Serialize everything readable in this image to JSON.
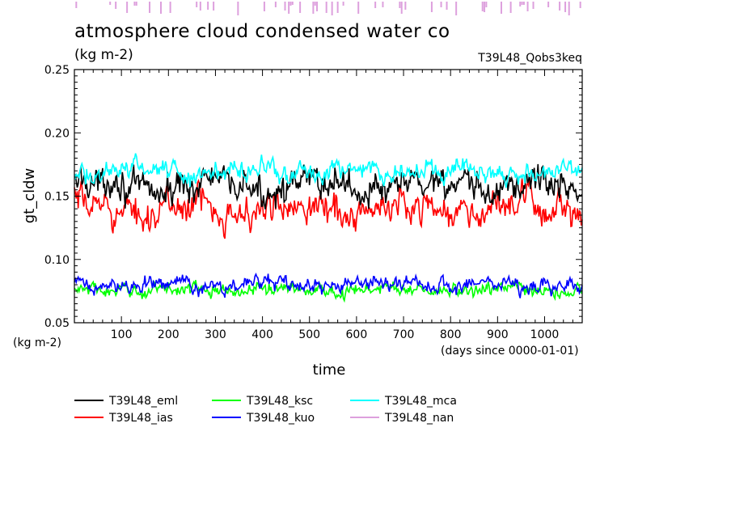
{
  "chart_data": {
    "type": "line",
    "title": "atmosphere cloud condensed water co",
    "subtitle": "(kg m-2)",
    "run_label": "T39L48_Qobs3keq",
    "xlabel": "time",
    "x_units": "(days since 0000-01-01)",
    "ylabel": "gt_cldw",
    "y_units": "(kg m-2)",
    "xlim": [
      0,
      1080
    ],
    "ylim": [
      0.05,
      0.25
    ],
    "xticks": [
      "100",
      "200",
      "300",
      "400",
      "500",
      "600",
      "700",
      "800",
      "900",
      "1000"
    ],
    "yticks": [
      "0.05",
      "0.10",
      "0.15",
      "0.20",
      "0.25"
    ],
    "legend_position": "below",
    "grid": false,
    "series": [
      {
        "name": "T39L48_eml",
        "color": "#000000",
        "mean": 0.158,
        "amp": 0.013
      },
      {
        "name": "T39L48_ias",
        "color": "#ff0000",
        "mean": 0.14,
        "amp": 0.013
      },
      {
        "name": "T39L48_ksc",
        "color": "#00ff00",
        "mean": 0.076,
        "amp": 0.005
      },
      {
        "name": "T39L48_kuo",
        "color": "#0000ff",
        "mean": 0.08,
        "amp": 0.006
      },
      {
        "name": "T39L48_mca",
        "color": "#00ffff",
        "mean": 0.17,
        "amp": 0.008
      },
      {
        "name": "T39L48_nan",
        "color": "#dda0dd",
        "mean": null,
        "amp": null
      }
    ]
  }
}
